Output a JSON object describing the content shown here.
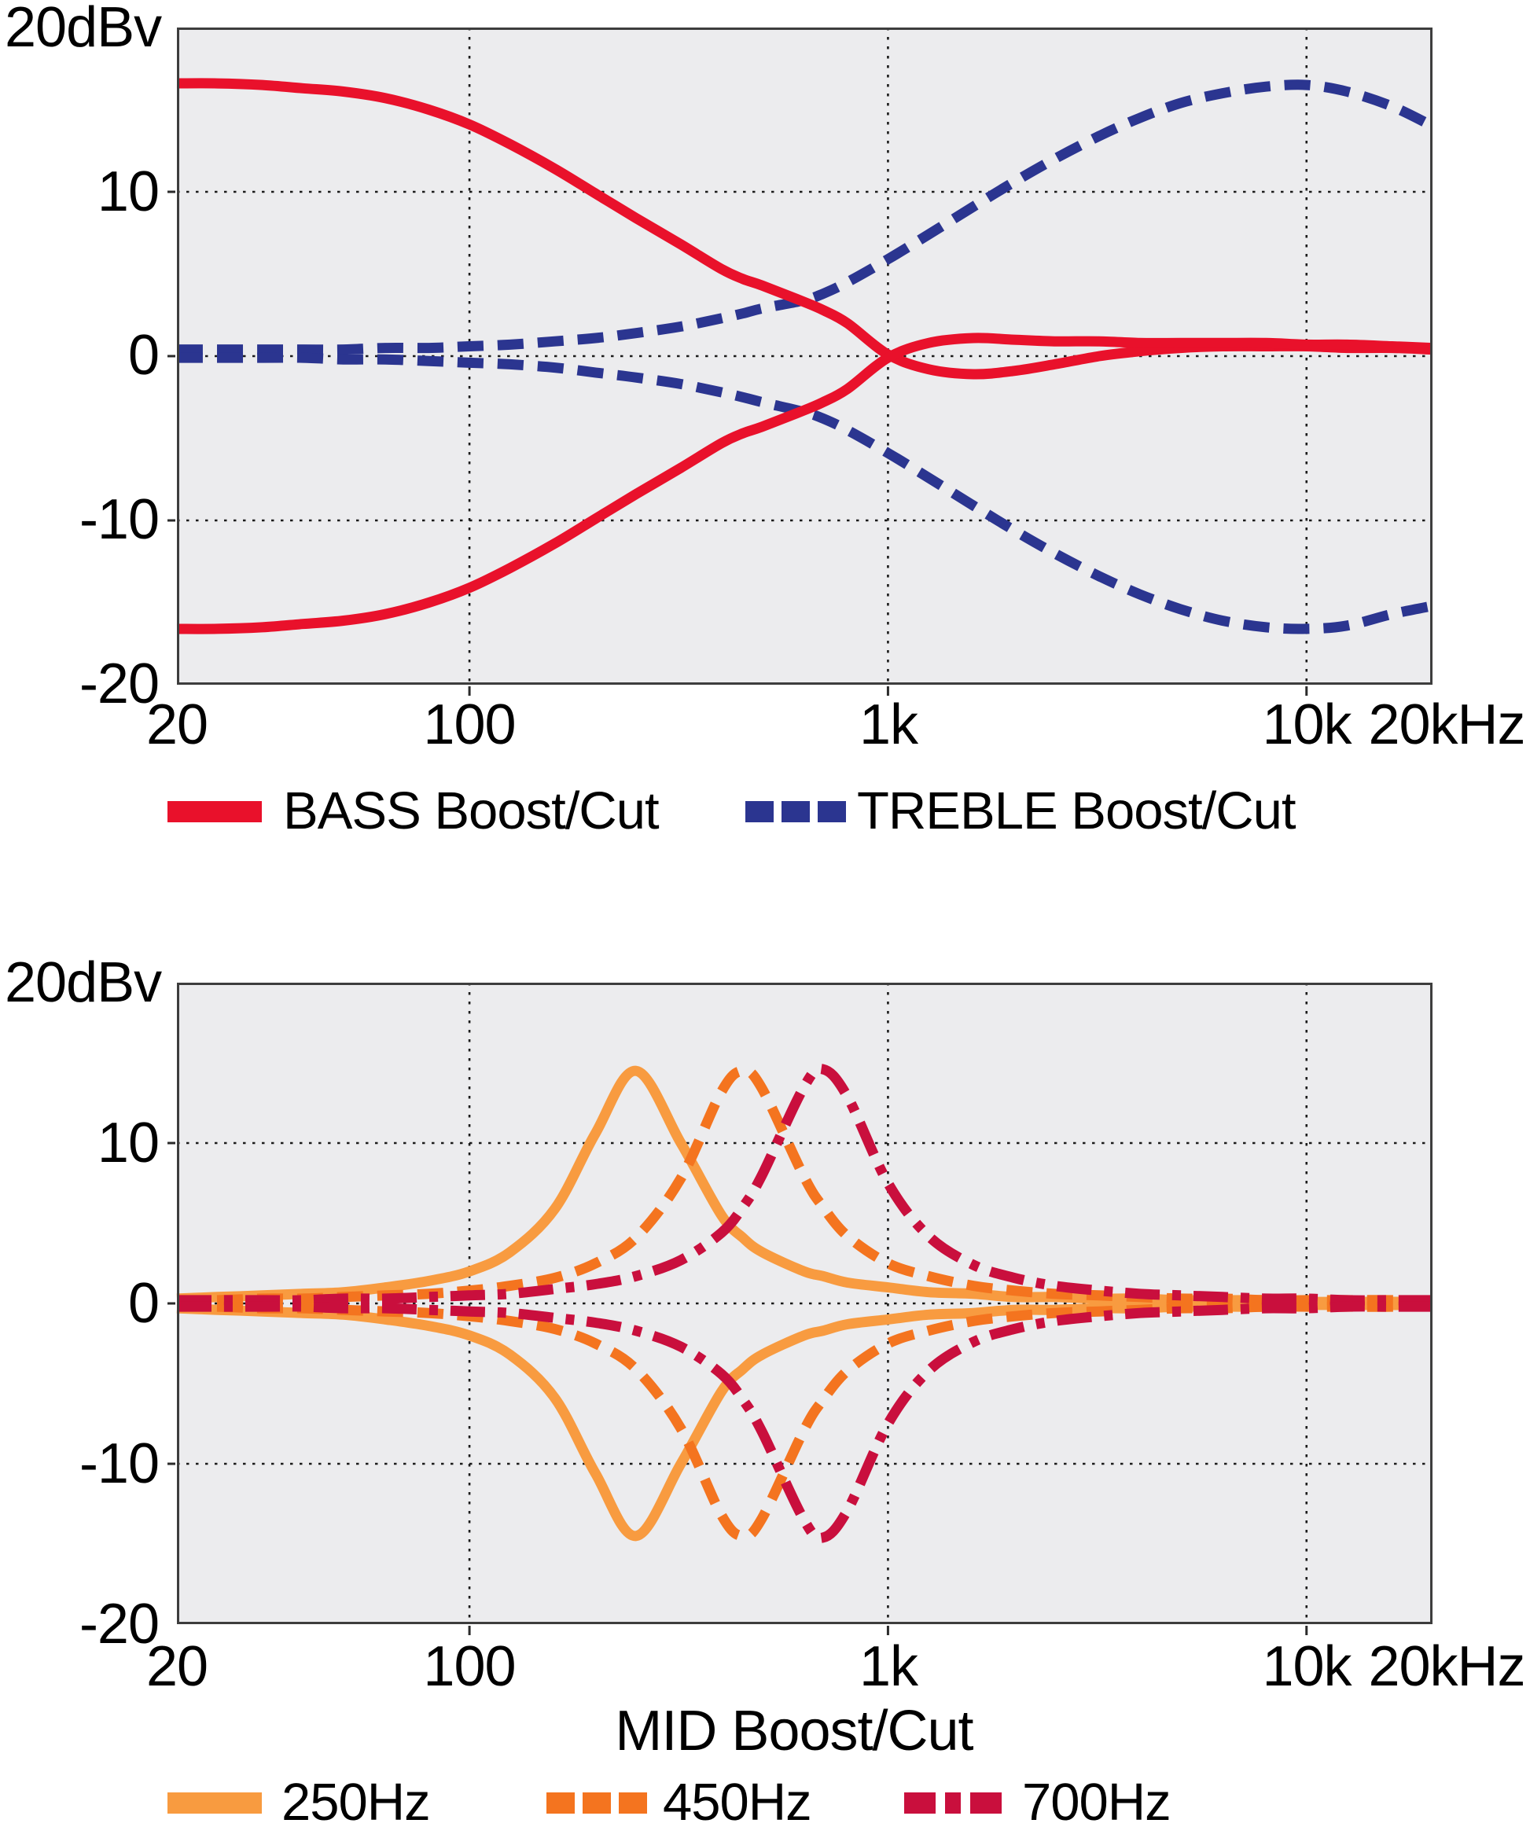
{
  "figure": {
    "charts": [
      {
        "y_axis_top_label": "20dBv",
        "y_ticks": [
          "10",
          "0",
          "-10",
          "-20"
        ],
        "x_ticks": [
          "20",
          "100",
          "1k",
          "10k",
          "20kHz"
        ],
        "x_axis_label": "",
        "legend": [
          {
            "label": "BASS Boost/Cut",
            "color": "#e9112b",
            "style": "solid"
          },
          {
            "label": "TREBLE Boost/Cut",
            "color": "#2b3590",
            "style": "dashed"
          }
        ]
      },
      {
        "y_axis_top_label": "20dBv",
        "y_ticks": [
          "10",
          "0",
          "-10",
          "-20"
        ],
        "x_ticks": [
          "20",
          "100",
          "1k",
          "10k",
          "20kHz"
        ],
        "x_axis_label": "MID Boost/Cut",
        "legend": [
          {
            "label": "250Hz",
            "color": "#f89b40",
            "style": "solid"
          },
          {
            "label": "450Hz",
            "color": "#f4741f",
            "style": "dashed"
          },
          {
            "label": "700Hz",
            "color": "#c90f3d",
            "style": "dashdot"
          }
        ]
      }
    ]
  },
  "chart_data": [
    {
      "type": "line",
      "title": "",
      "xlabel": "",
      "ylabel": "dBv",
      "x_unit": "Hz",
      "x_scale": "log",
      "xlim": [
        20,
        20000
      ],
      "ylim": [
        -20,
        20
      ],
      "x_gridlines": [
        100,
        1000,
        10000
      ],
      "y_gridlines": [
        10,
        0,
        -10
      ],
      "plot_background": "#ececee",
      "x": [
        20,
        25,
        32,
        40,
        50,
        63,
        80,
        100,
        125,
        160,
        200,
        250,
        320,
        400,
        450,
        500,
        630,
        700,
        800,
        1000,
        1250,
        1600,
        2000,
        2500,
        3200,
        4000,
        5000,
        6300,
        8000,
        10000,
        12500,
        16000,
        20000
      ],
      "series": [
        {
          "name": "TREBLE Boost",
          "legend": "TREBLE Boost/Cut",
          "color": "#2b3590",
          "style": "dashed",
          "values": [
            0.4,
            0.4,
            0.4,
            0.4,
            0.4,
            0.5,
            0.5,
            0.6,
            0.7,
            0.9,
            1.1,
            1.4,
            1.8,
            2.3,
            2.6,
            2.9,
            3.4,
            3.8,
            4.5,
            5.9,
            7.4,
            9.1,
            10.6,
            12.0,
            13.4,
            14.5,
            15.4,
            16.0,
            16.4,
            16.5,
            16.1,
            15.2,
            14.0
          ]
        },
        {
          "name": "TREBLE Cut",
          "legend": "TREBLE Boost/Cut",
          "color": "#2b3590",
          "style": "dashed",
          "values": [
            -0.1,
            -0.1,
            -0.1,
            -0.1,
            -0.2,
            -0.2,
            -0.3,
            -0.4,
            -0.5,
            -0.7,
            -1.0,
            -1.3,
            -1.7,
            -2.2,
            -2.5,
            -2.8,
            -3.4,
            -3.8,
            -4.5,
            -5.9,
            -7.4,
            -9.1,
            -10.6,
            -12.0,
            -13.4,
            -14.5,
            -15.4,
            -16.1,
            -16.5,
            -16.6,
            -16.4,
            -15.7,
            -15.2
          ]
        },
        {
          "name": "BASS Boost",
          "legend": "BASS Boost/Cut",
          "color": "#e9112b",
          "style": "solid",
          "values": [
            16.6,
            16.6,
            16.5,
            16.3,
            16.1,
            15.7,
            15.0,
            14.1,
            12.9,
            11.4,
            9.9,
            8.4,
            6.8,
            5.3,
            4.7,
            4.3,
            3.3,
            2.8,
            2.0,
            0.1,
            -0.8,
            -1.1,
            -0.9,
            -0.5,
            0.0,
            0.3,
            0.5,
            0.6,
            0.6,
            0.6,
            0.5,
            0.5,
            0.4
          ]
        },
        {
          "name": "BASS Cut",
          "legend": "BASS Boost/Cut",
          "color": "#e9112b",
          "style": "solid",
          "values": [
            -16.6,
            -16.6,
            -16.5,
            -16.3,
            -16.1,
            -15.7,
            -15.0,
            -14.1,
            -12.9,
            -11.4,
            -9.9,
            -8.4,
            -6.8,
            -5.3,
            -4.7,
            -4.3,
            -3.3,
            -2.8,
            -2.0,
            -0.1,
            0.8,
            1.1,
            1.0,
            0.9,
            0.9,
            0.8,
            0.8,
            0.8,
            0.8,
            0.7,
            0.7,
            0.6,
            0.5
          ]
        }
      ]
    },
    {
      "type": "line",
      "title": "",
      "xlabel": "MID Boost/Cut",
      "ylabel": "dBv",
      "x_unit": "Hz",
      "x_scale": "log",
      "xlim": [
        20,
        20000
      ],
      "ylim": [
        -20,
        20
      ],
      "x_gridlines": [
        100,
        1000,
        10000
      ],
      "y_gridlines": [
        10,
        0,
        -10
      ],
      "plot_background": "#ececee",
      "x": [
        20,
        25,
        32,
        40,
        50,
        63,
        80,
        100,
        125,
        160,
        200,
        250,
        320,
        400,
        450,
        500,
        630,
        700,
        800,
        1000,
        1250,
        1600,
        2000,
        2500,
        3200,
        4000,
        5000,
        6300,
        8000,
        10000,
        12500,
        16000,
        20000
      ],
      "series": [
        {
          "name": "250Hz Boost",
          "legend": "250Hz",
          "color": "#f89b40",
          "style": "solid",
          "values": [
            0.3,
            0.4,
            0.5,
            0.6,
            0.7,
            1.0,
            1.4,
            2.0,
            3.2,
            5.9,
            10.6,
            14.5,
            10.0,
            5.5,
            4.1,
            3.2,
            2.0,
            1.7,
            1.3,
            1.0,
            0.7,
            0.6,
            0.4,
            0.4,
            0.3,
            0.3,
            0.2,
            0.2,
            0.2,
            0.1,
            0.1,
            0.1,
            0.1
          ]
        },
        {
          "name": "250Hz Cut",
          "legend": "250Hz",
          "color": "#f89b40",
          "style": "solid",
          "values": [
            -0.3,
            -0.4,
            -0.5,
            -0.6,
            -0.7,
            -1.0,
            -1.4,
            -2.0,
            -3.2,
            -5.9,
            -10.6,
            -14.5,
            -10.0,
            -5.5,
            -4.1,
            -3.2,
            -2.0,
            -1.7,
            -1.3,
            -1.0,
            -0.7,
            -0.6,
            -0.4,
            -0.4,
            -0.3,
            -0.3,
            -0.2,
            -0.2,
            -0.2,
            -0.1,
            -0.1,
            -0.1,
            -0.1
          ]
        },
        {
          "name": "450Hz Boost",
          "legend": "450Hz",
          "color": "#f4741f",
          "style": "dashed",
          "values": [
            0.2,
            0.2,
            0.3,
            0.3,
            0.4,
            0.5,
            0.6,
            0.8,
            1.1,
            1.6,
            2.5,
            4.1,
            7.8,
            13.2,
            14.5,
            13.4,
            7.9,
            6.0,
            4.2,
            2.5,
            1.7,
            1.1,
            0.8,
            0.6,
            0.5,
            0.4,
            0.3,
            0.3,
            0.2,
            0.2,
            0.2,
            0.2,
            0.1
          ]
        },
        {
          "name": "450Hz Cut",
          "legend": "450Hz",
          "color": "#f4741f",
          "style": "dashed",
          "values": [
            -0.2,
            -0.2,
            -0.3,
            -0.3,
            -0.4,
            -0.5,
            -0.6,
            -0.8,
            -1.1,
            -1.6,
            -2.5,
            -4.1,
            -7.8,
            -13.2,
            -14.5,
            -13.4,
            -7.9,
            -6.0,
            -4.2,
            -2.5,
            -1.7,
            -1.1,
            -0.8,
            -0.6,
            -0.5,
            -0.4,
            -0.3,
            -0.3,
            -0.2,
            -0.2,
            -0.2,
            -0.2,
            -0.1
          ]
        },
        {
          "name": "700Hz Boost",
          "legend": "700Hz",
          "color": "#c90f3d",
          "style": "dashdot",
          "values": [
            0.2,
            0.2,
            0.2,
            0.2,
            0.3,
            0.3,
            0.4,
            0.5,
            0.6,
            0.9,
            1.2,
            1.7,
            2.7,
            4.4,
            6.0,
            8.0,
            13.5,
            14.6,
            12.9,
            7.5,
            4.2,
            2.4,
            1.6,
            1.1,
            0.8,
            0.6,
            0.5,
            0.4,
            0.3,
            0.3,
            0.2,
            0.2,
            0.2
          ]
        },
        {
          "name": "700Hz Cut",
          "legend": "700Hz",
          "color": "#c90f3d",
          "style": "dashdot",
          "values": [
            -0.2,
            -0.2,
            -0.2,
            -0.2,
            -0.3,
            -0.3,
            -0.4,
            -0.5,
            -0.6,
            -0.9,
            -1.2,
            -1.7,
            -2.7,
            -4.4,
            -6.0,
            -8.0,
            -13.5,
            -14.6,
            -12.9,
            -7.5,
            -4.2,
            -2.4,
            -1.6,
            -1.1,
            -0.8,
            -0.6,
            -0.5,
            -0.4,
            -0.3,
            -0.3,
            -0.2,
            -0.2,
            -0.2
          ]
        }
      ]
    }
  ]
}
